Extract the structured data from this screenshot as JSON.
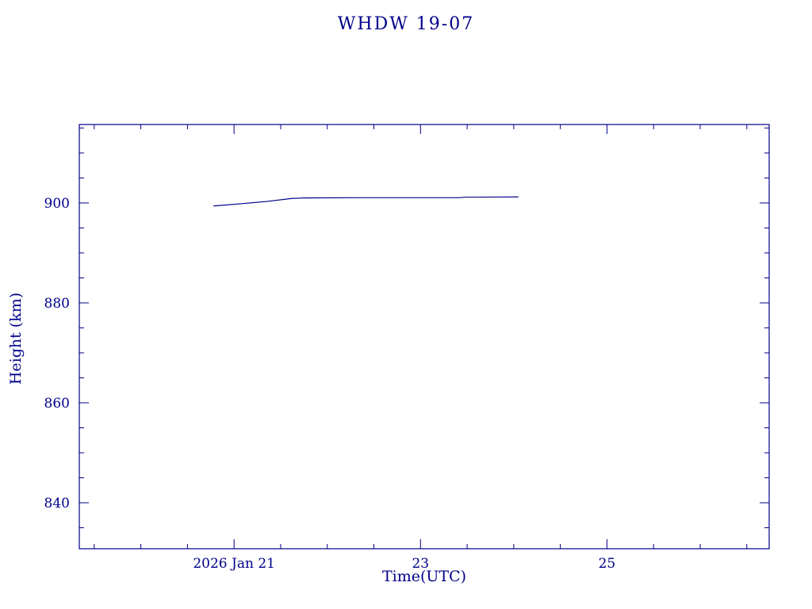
{
  "chart_data": {
    "type": "line",
    "title": "WHDW 19-07",
    "xlabel": "Time(UTC)",
    "ylabel": "Height (km)",
    "xlim": [
      19.34,
      26.74
    ],
    "ylim": [
      830.8,
      915.7
    ],
    "x_major_ticks": [
      {
        "value": 21,
        "label": "2026 Jan 21"
      },
      {
        "value": 23,
        "label": "23"
      },
      {
        "value": 25,
        "label": "25"
      }
    ],
    "x_minor_step": 0.5,
    "y_major_ticks": [
      {
        "value": 840,
        "label": "840"
      },
      {
        "value": 860,
        "label": "860"
      },
      {
        "value": 880,
        "label": "880"
      },
      {
        "value": 900,
        "label": "900"
      }
    ],
    "y_minor_step": 5,
    "axis_color": "#00008b",
    "grid": false,
    "legend": false,
    "series": [
      {
        "name": "height",
        "color": "#00008b",
        "x": [
          20.78,
          21.05,
          21.35,
          21.62,
          21.75,
          22.3,
          23.0,
          23.42,
          23.47,
          24.05
        ],
        "y": [
          899.4,
          899.8,
          900.3,
          900.9,
          901.0,
          901.05,
          901.05,
          901.05,
          901.15,
          901.2
        ]
      }
    ]
  }
}
